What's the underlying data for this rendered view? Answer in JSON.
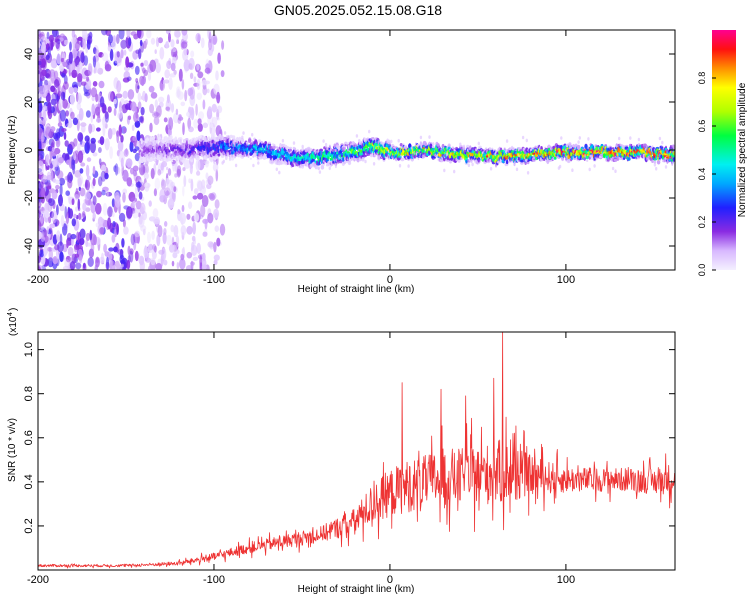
{
  "title": "GN05.2025.052.15.08.G18",
  "colors": {
    "snr_line": "#ee3333",
    "spectrogram_scheme": "rainbow"
  },
  "chart_data": [
    {
      "type": "heatmap",
      "xlabel": "Height of straight line (km)",
      "ylabel": "Frequency (Hz)",
      "xlim": [
        -200,
        162
      ],
      "ylim": [
        -50,
        50
      ],
      "xticks": [
        -200,
        -100,
        0,
        100
      ],
      "yticks": [
        -40,
        -20,
        0,
        20,
        40
      ],
      "colorbar": {
        "label": "Normalized spectral amplitude",
        "range": [
          0.0,
          1.0
        ],
        "ticks": [
          0.0,
          0.2,
          0.4,
          0.6,
          0.8
        ]
      },
      "ridge": {
        "x": [
          -140,
          -120,
          -100,
          -80,
          -60,
          -50,
          -40,
          -20,
          -10,
          0,
          20,
          40,
          60,
          80,
          100,
          120,
          140,
          160
        ],
        "frequency": [
          0,
          0,
          1,
          1,
          -2,
          -4,
          -3,
          -1,
          2,
          -1,
          0,
          -2,
          -3,
          -2,
          -1,
          -1,
          -1,
          -2
        ],
        "peak_amplitude": [
          0.15,
          0.2,
          0.3,
          0.4,
          0.45,
          0.5,
          0.55,
          0.6,
          0.7,
          0.75,
          0.8,
          0.8,
          0.85,
          0.9,
          0.92,
          0.95,
          0.95,
          0.95
        ]
      }
    },
    {
      "type": "line",
      "xlabel": "Height of straight line (km)",
      "ylabel": "SNR (10 * v/v)",
      "y_multiplier_label": "(x10",
      "y_multiplier_exp": "4",
      "xlim": [
        -200,
        162
      ],
      "ylim": [
        0,
        1.08
      ],
      "xticks": [
        -200,
        -100,
        0,
        100
      ],
      "yticks": [
        0.2,
        0.4,
        0.6,
        0.8,
        1.0
      ],
      "envelope": {
        "x": [
          -200,
          -150,
          -120,
          -100,
          -80,
          -60,
          -40,
          -20,
          -10,
          0,
          10,
          20,
          30,
          40,
          50,
          60,
          65,
          70,
          80,
          100,
          120,
          140,
          150,
          162
        ],
        "mean": [
          0.02,
          0.02,
          0.03,
          0.06,
          0.1,
          0.13,
          0.16,
          0.22,
          0.3,
          0.35,
          0.38,
          0.4,
          0.42,
          0.42,
          0.43,
          0.44,
          0.45,
          0.44,
          0.43,
          0.41,
          0.41,
          0.41,
          0.4,
          0.42
        ],
        "spread": [
          0.01,
          0.01,
          0.015,
          0.03,
          0.04,
          0.05,
          0.06,
          0.1,
          0.15,
          0.18,
          0.2,
          0.2,
          0.22,
          0.22,
          0.22,
          0.24,
          0.25,
          0.22,
          0.15,
          0.1,
          0.09,
          0.09,
          0.1,
          0.12
        ]
      },
      "peaks": [
        {
          "x": 7,
          "y": 0.85
        },
        {
          "x": 29,
          "y": 0.82
        },
        {
          "x": 43,
          "y": 0.79
        },
        {
          "x": 59,
          "y": 0.87
        },
        {
          "x": 64,
          "y": 1.08
        }
      ]
    }
  ]
}
